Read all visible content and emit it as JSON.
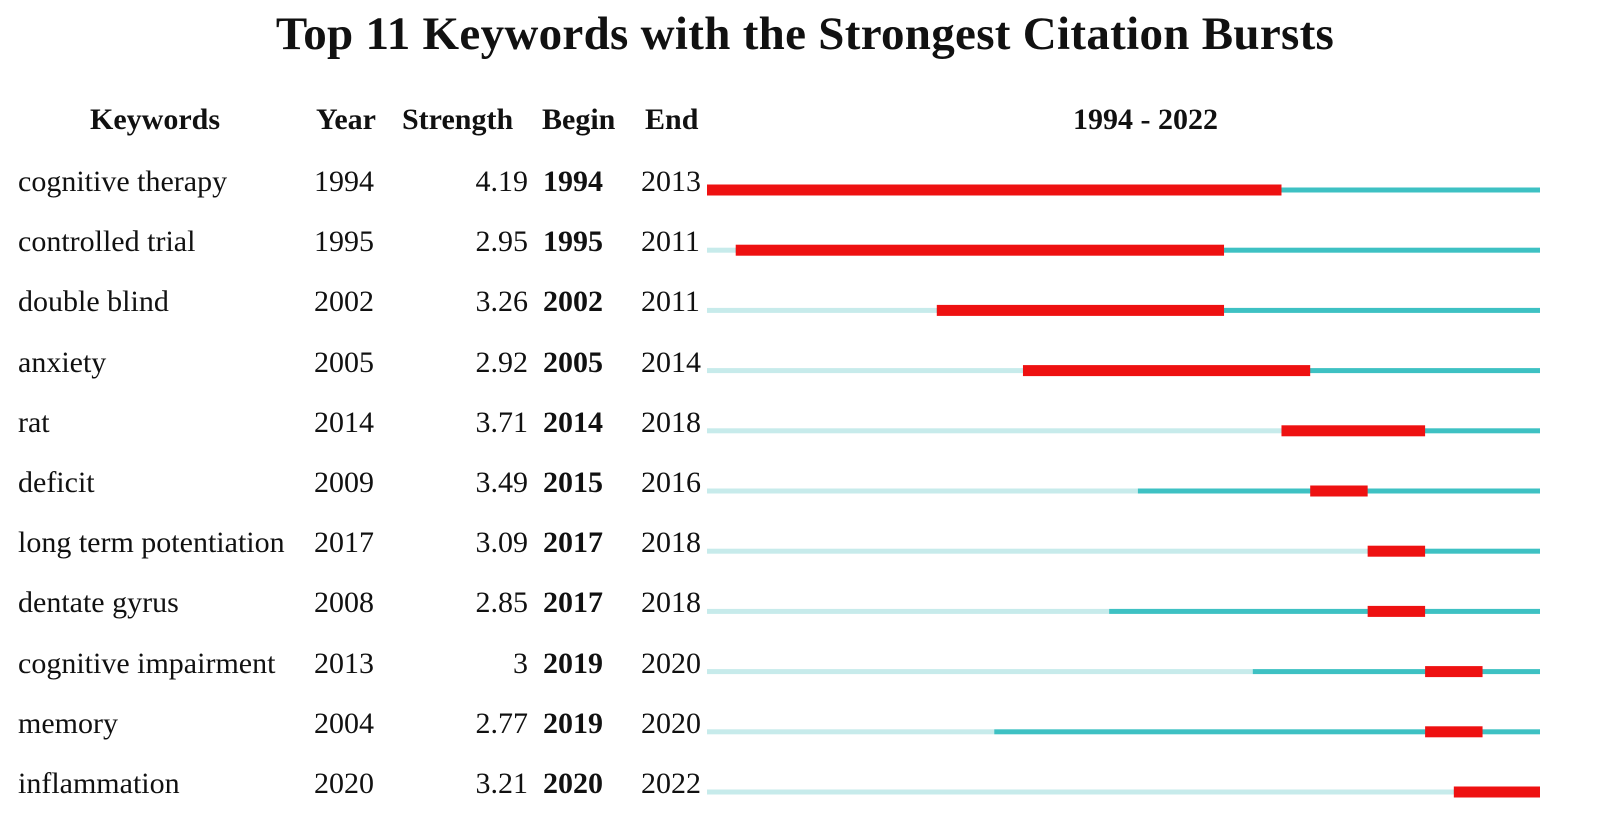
{
  "chart_data": {
    "type": "table",
    "title": "Top 11 Keywords with the Strongest Citation Bursts",
    "columns": {
      "keyword": "Keywords",
      "year": "Year",
      "strength": "Strength",
      "begin": "Begin",
      "end": "End",
      "range": "1994 - 2022"
    },
    "range": [
      1994,
      2022
    ],
    "colors": {
      "before_year": "#c7ebeb",
      "active": "#3ec1c3",
      "burst": "#ee1111"
    },
    "rows": [
      {
        "keyword": "cognitive therapy",
        "year": "1994",
        "strength": "4.19",
        "begin": "1994",
        "end": "2013"
      },
      {
        "keyword": "controlled trial",
        "year": "1995",
        "strength": "2.95",
        "begin": "1995",
        "end": "2011"
      },
      {
        "keyword": "double blind",
        "year": "2002",
        "strength": "3.26",
        "begin": "2002",
        "end": "2011"
      },
      {
        "keyword": "anxiety",
        "year": "2005",
        "strength": "2.92",
        "begin": "2005",
        "end": "2014"
      },
      {
        "keyword": "rat",
        "year": "2014",
        "strength": "3.71",
        "begin": "2014",
        "end": "2018"
      },
      {
        "keyword": "deficit",
        "year": "2009",
        "strength": "3.49",
        "begin": "2015",
        "end": "2016"
      },
      {
        "keyword": "long term potentiation",
        "year": "2017",
        "strength": "3.09",
        "begin": "2017",
        "end": "2018"
      },
      {
        "keyword": "dentate gyrus",
        "year": "2008",
        "strength": "2.85",
        "begin": "2017",
        "end": "2018"
      },
      {
        "keyword": "cognitive impairment",
        "year": "2013",
        "strength": "3",
        "begin": "2019",
        "end": "2020"
      },
      {
        "keyword": "memory",
        "year": "2004",
        "strength": "2.77",
        "begin": "2019",
        "end": "2020"
      },
      {
        "keyword": "inflammation",
        "year": "2020",
        "strength": "3.21",
        "begin": "2020",
        "end": "2022"
      }
    ]
  }
}
